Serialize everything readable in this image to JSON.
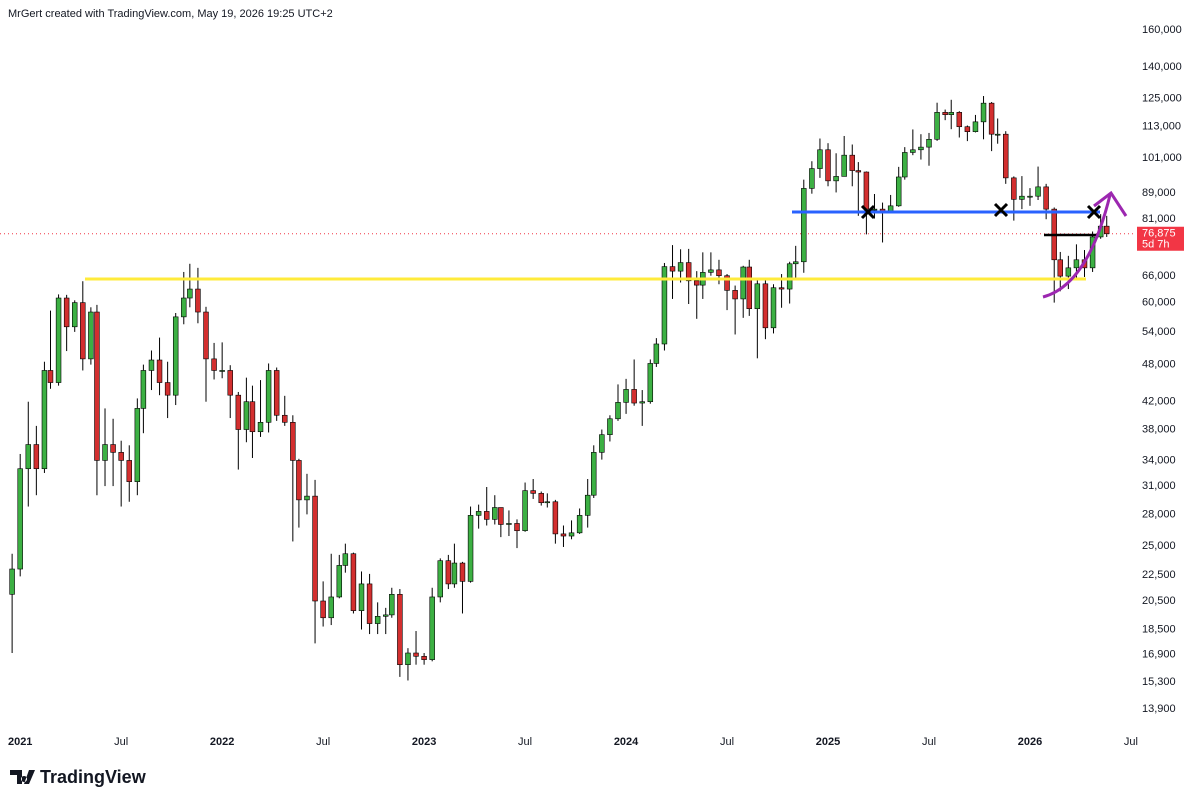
{
  "header": "MrGert created with TradingView.com, May 19, 2026 19:25 UTC+2",
  "logo": "TradingView",
  "chart_data": {
    "type": "candlestick",
    "log_scale": true,
    "up_color": "#3cb043",
    "down_color": "#d32f2f",
    "last_price": {
      "value": 76875,
      "label": "76,875"
    },
    "countdown": "5d 7h",
    "xlim": [
      2020.9,
      2026.52
    ],
    "xticks": [
      {
        "value": 2021,
        "label": "2021"
      },
      {
        "value": 2021.5,
        "label": "Jul"
      },
      {
        "value": 2022,
        "label": "2022"
      },
      {
        "value": 2022.5,
        "label": "Jul"
      },
      {
        "value": 2023,
        "label": "2023"
      },
      {
        "value": 2023.5,
        "label": "Jul"
      },
      {
        "value": 2024,
        "label": "2024"
      },
      {
        "value": 2024.5,
        "label": "Jul"
      },
      {
        "value": 2025,
        "label": "2025"
      },
      {
        "value": 2025.5,
        "label": "Jul"
      },
      {
        "value": 2026,
        "label": "2026"
      },
      {
        "value": 2026.5,
        "label": "Jul"
      }
    ],
    "ylim": [
      13120,
      178300
    ],
    "yticks": [
      {
        "value": 160000,
        "label": "160,000"
      },
      {
        "value": 140000,
        "label": "140,000"
      },
      {
        "value": 125000,
        "label": "125,000"
      },
      {
        "value": 113000,
        "label": "113,000"
      },
      {
        "value": 101000,
        "label": "101,000"
      },
      {
        "value": 89000,
        "label": "89,000"
      },
      {
        "value": 81000,
        "label": "81,000"
      },
      {
        "value": 66000,
        "label": "66,000"
      },
      {
        "value": 60000,
        "label": "60,000"
      },
      {
        "value": 54000,
        "label": "54,000"
      },
      {
        "value": 48000,
        "label": "48,000"
      },
      {
        "value": 42000,
        "label": "42,000"
      },
      {
        "value": 38000,
        "label": "38,000"
      },
      {
        "value": 34000,
        "label": "34,000"
      },
      {
        "value": 31000,
        "label": "31,000"
      },
      {
        "value": 28000,
        "label": "28,000"
      },
      {
        "value": 25000,
        "label": "25,000"
      },
      {
        "value": 22500,
        "label": "22,500"
      },
      {
        "value": 20500,
        "label": "20,500"
      },
      {
        "value": 18500,
        "label": "18,500"
      },
      {
        "value": 16900,
        "label": "16,900"
      },
      {
        "value": 15300,
        "label": "15,300"
      },
      {
        "value": 13900,
        "label": "13,900"
      }
    ],
    "x": [
      2020.96,
      2021,
      2021.04,
      2021.08,
      2021.12,
      2021.15,
      2021.19,
      2021.23,
      2021.27,
      2021.31,
      2021.35,
      2021.38,
      2021.42,
      2021.46,
      2021.5,
      2021.54,
      2021.58,
      2021.61,
      2021.65,
      2021.69,
      2021.73,
      2021.77,
      2021.81,
      2021.84,
      2021.88,
      2021.92,
      2021.96,
      2022,
      2022.04,
      2022.08,
      2022.12,
      2022.15,
      2022.19,
      2022.23,
      2022.27,
      2022.31,
      2022.35,
      2022.38,
      2022.42,
      2022.46,
      2022.5,
      2022.54,
      2022.58,
      2022.61,
      2022.65,
      2022.69,
      2022.73,
      2022.77,
      2022.81,
      2022.84,
      2022.88,
      2022.92,
      2022.96,
      2023,
      2023.04,
      2023.08,
      2023.12,
      2023.15,
      2023.19,
      2023.23,
      2023.27,
      2023.31,
      2023.35,
      2023.38,
      2023.42,
      2023.46,
      2023.5,
      2023.54,
      2023.58,
      2023.61,
      2023.65,
      2023.69,
      2023.73,
      2023.77,
      2023.81,
      2023.84,
      2023.88,
      2023.92,
      2023.96,
      2024,
      2024.04,
      2024.08,
      2024.12,
      2024.15,
      2024.19,
      2024.23,
      2024.27,
      2024.31,
      2024.35,
      2024.38,
      2024.42,
      2024.46,
      2024.5,
      2024.54,
      2024.58,
      2024.61,
      2024.65,
      2024.69,
      2024.73,
      2024.77,
      2024.81,
      2024.84,
      2024.88,
      2024.92,
      2024.96,
      2025,
      2025.04,
      2025.08,
      2025.12,
      2025.15,
      2025.19,
      2025.23,
      2025.27,
      2025.31,
      2025.35,
      2025.38,
      2025.42,
      2025.46,
      2025.5,
      2025.54,
      2025.58,
      2025.61,
      2025.65,
      2025.69,
      2025.73,
      2025.77,
      2025.81,
      2025.84,
      2025.88,
      2025.92,
      2025.96,
      2026,
      2026.04,
      2026.08,
      2026.12,
      2026.15,
      2026.19,
      2026.23,
      2026.27,
      2026.31,
      2026.35,
      2026.38
    ],
    "open": [
      21000,
      23000,
      33000,
      36000,
      33000,
      47000,
      45000,
      61000,
      55000,
      60000,
      49000,
      58000,
      34000,
      36000,
      35000,
      34000,
      31500,
      41000,
      47000,
      48800,
      45000,
      43000,
      57000,
      61000,
      63000,
      58000,
      49000,
      47000,
      47000,
      43000,
      38000,
      42000,
      37700,
      39000,
      47000,
      40000,
      39000,
      34000,
      29500,
      29900,
      20500,
      19300,
      20800,
      23300,
      24300,
      19800,
      21800,
      18900,
      19400,
      19500,
      21000,
      16300,
      17000,
      16800,
      16600,
      20800,
      23700,
      21800,
      23500,
      22000,
      27900,
      28300,
      27500,
      28700,
      27000,
      27100,
      26400,
      30500,
      30200,
      29200,
      29300,
      26100,
      25900,
      26200,
      27900,
      30000,
      35000,
      37300,
      39500,
      41900,
      43900,
      41800,
      42000,
      48200,
      51700,
      68300,
      67200,
      69300,
      64900,
      63900,
      66900,
      67500,
      66100,
      62700,
      60800,
      68200,
      58700,
      64200,
      54800,
      63300,
      63000,
      69000,
      69500,
      90500,
      97200,
      104000,
      93000,
      94500,
      102000,
      96500,
      96000,
      84000,
      84000,
      83000,
      85000,
      94300,
      103000,
      104000,
      105000,
      108000,
      119000,
      118000,
      119000,
      113000,
      111000,
      115000,
      123000,
      110000,
      110000,
      94000,
      87000,
      88000,
      88000,
      91000,
      84000,
      70000,
      66000,
      68000,
      70000,
      68000,
      76000,
      79000
    ],
    "high": [
      24300,
      34800,
      42000,
      38500,
      48500,
      58300,
      61800,
      61700,
      60500,
      64800,
      59000,
      59500,
      41000,
      39500,
      36500,
      35900,
      42500,
      48000,
      50500,
      52900,
      48500,
      57800,
      67000,
      69000,
      68000,
      59100,
      51900,
      52000,
      47900,
      43500,
      45800,
      44500,
      45400,
      48200,
      47500,
      42900,
      40000,
      34200,
      32400,
      31700,
      22000,
      24300,
      24200,
      25200,
      24400,
      22800,
      22600,
      20400,
      20000,
      21500,
      21400,
      17300,
      18400,
      17000,
      21500,
      23900,
      24200,
      25200,
      23600,
      28800,
      29000,
      30900,
      30000,
      28700,
      28400,
      27500,
      31400,
      31800,
      30400,
      30200,
      29500,
      26900,
      27400,
      28600,
      31800,
      35900,
      38000,
      40000,
      44700,
      45600,
      48900,
      43800,
      48900,
      52800,
      69200,
      73800,
      72700,
      72800,
      67200,
      71900,
      71900,
      70000,
      66500,
      63800,
      68500,
      70000,
      65000,
      65000,
      64100,
      66500,
      69500,
      73600,
      93400,
      99800,
      108300,
      106500,
      102700,
      109300,
      106000,
      99500,
      96200,
      88700,
      86000,
      88400,
      97800,
      105000,
      111900,
      110000,
      110500,
      123200,
      120200,
      124500,
      119500,
      113500,
      117900,
      126200,
      123500,
      116400,
      111200,
      94500,
      94600,
      90600,
      97900,
      92000,
      84500,
      72000,
      71000,
      74000,
      72500,
      77500,
      82500,
      82000
    ],
    "low": [
      17000,
      22400,
      28800,
      30000,
      32500,
      44000,
      44500,
      50400,
      54000,
      47000,
      48000,
      30000,
      31000,
      31000,
      28800,
      29300,
      30000,
      37500,
      43800,
      43000,
      39600,
      41500,
      55500,
      59000,
      55700,
      42000,
      45500,
      45700,
      39600,
      32900,
      36300,
      34300,
      37000,
      37600,
      39200,
      38500,
      25400,
      26700,
      28000,
      17600,
      18700,
      18800,
      20700,
      22700,
      19600,
      18500,
      18200,
      18200,
      18200,
      19300,
      15600,
      15400,
      16300,
      16300,
      16500,
      20400,
      21400,
      21500,
      19600,
      21900,
      26600,
      26900,
      27000,
      25800,
      25900,
      24800,
      26300,
      29600,
      28900,
      28700,
      25200,
      24900,
      25600,
      26100,
      26700,
      29700,
      34100,
      36400,
      39200,
      40200,
      41400,
      38500,
      41700,
      47600,
      50500,
      60800,
      64500,
      59700,
      56600,
      60800,
      66100,
      64100,
      58400,
      53500,
      56800,
      57200,
      49100,
      52600,
      53700,
      58900,
      59800,
      65500,
      66800,
      88800,
      94000,
      91200,
      89200,
      95100,
      91200,
      82000,
      76700,
      81200,
      74500,
      82700,
      84700,
      93400,
      102000,
      100400,
      98200,
      107400,
      115700,
      112000,
      108700,
      107300,
      110700,
      108000,
      103500,
      106300,
      92000,
      80600,
      84000,
      85000,
      86800,
      81000,
      60000,
      62500,
      63000,
      65500,
      65800,
      67000,
      75500,
      76000
    ],
    "close": [
      23000,
      33000,
      36000,
      33000,
      47000,
      45000,
      61000,
      55000,
      60000,
      49000,
      58000,
      34000,
      36000,
      35000,
      34000,
      31500,
      41000,
      47000,
      48800,
      45000,
      43000,
      57000,
      61000,
      63000,
      58000,
      49000,
      47000,
      47000,
      43000,
      38000,
      42000,
      37700,
      39000,
      47000,
      40000,
      39000,
      34000,
      29500,
      29900,
      20500,
      19300,
      20800,
      23300,
      24300,
      19800,
      21800,
      18900,
      19400,
      19500,
      21000,
      16300,
      17000,
      16800,
      16600,
      20800,
      23700,
      21800,
      23500,
      22000,
      27900,
      28300,
      27500,
      28700,
      27000,
      27100,
      26400,
      30500,
      30200,
      29200,
      29300,
      26100,
      25900,
      26200,
      27900,
      30000,
      35000,
      37300,
      39500,
      41900,
      43900,
      41800,
      42000,
      48200,
      51700,
      68300,
      67200,
      69300,
      64900,
      63900,
      66900,
      67500,
      66100,
      62700,
      60800,
      68200,
      58700,
      64200,
      54800,
      63300,
      63000,
      69000,
      69500,
      90500,
      97200,
      104000,
      93000,
      94500,
      102000,
      96500,
      96000,
      84000,
      84000,
      83000,
      85000,
      94300,
      103000,
      104000,
      105000,
      108000,
      119000,
      118000,
      119000,
      113000,
      111000,
      115000,
      123000,
      110000,
      110000,
      94000,
      87000,
      88000,
      88000,
      91000,
      84000,
      70000,
      66000,
      68000,
      70000,
      68000,
      76000,
      79000,
      76875
    ]
  }
}
